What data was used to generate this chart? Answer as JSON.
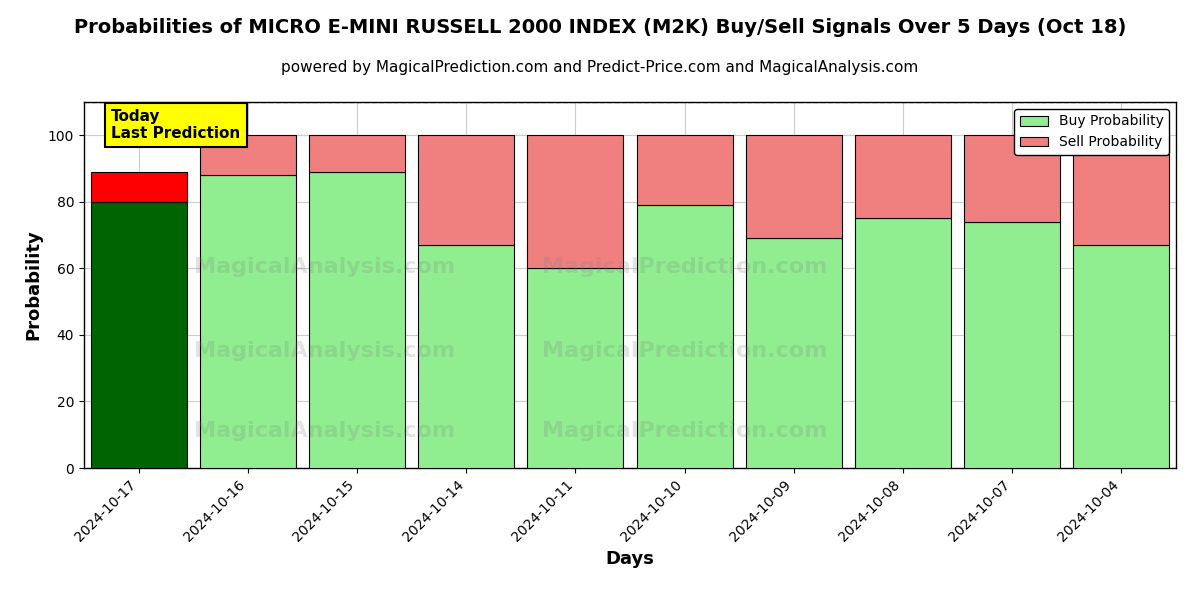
{
  "title": "Probabilities of MICRO E-MINI RUSSELL 2000 INDEX (M2K) Buy/Sell Signals Over 5 Days (Oct 18)",
  "subtitle": "powered by MagicalPrediction.com and Predict-Price.com and MagicalAnalysis.com",
  "xlabel": "Days",
  "ylabel": "Probability",
  "dates": [
    "2024-10-17",
    "2024-10-16",
    "2024-10-15",
    "2024-10-14",
    "2024-10-11",
    "2024-10-10",
    "2024-10-09",
    "2024-10-08",
    "2024-10-07",
    "2024-10-04"
  ],
  "buy_values": [
    80,
    88,
    89,
    67,
    60,
    79,
    69,
    75,
    74,
    67
  ],
  "sell_values": [
    9,
    12,
    11,
    33,
    40,
    21,
    31,
    25,
    26,
    33
  ],
  "today_buy_color": "#006400",
  "today_sell_color": "#FF0000",
  "buy_color": "#90EE90",
  "sell_color": "#F08080",
  "bar_edge_color": "#000000",
  "today_annotation": "Today\nLast Prediction",
  "today_annotation_bg": "#FFFF00",
  "legend_buy_label": "Buy Probability",
  "legend_sell_label": "Sell Probability",
  "ylim": [
    0,
    110
  ],
  "dashed_line_y": 110,
  "background_color": "#FFFFFF",
  "grid_color": "#CCCCCC",
  "title_fontsize": 14,
  "subtitle_fontsize": 11,
  "axis_label_fontsize": 13,
  "bar_width": 0.88
}
